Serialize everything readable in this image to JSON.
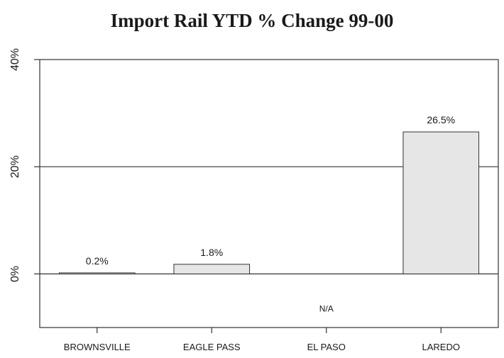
{
  "chart_data": {
    "type": "bar",
    "title": "Import Rail YTD % Change 99-00",
    "xlabel": "",
    "ylabel": "",
    "categories": [
      "BROWNSVILLE",
      "EAGLE PASS",
      "EL PASO",
      "LAREDO"
    ],
    "values": [
      0.2,
      1.8,
      null,
      26.5
    ],
    "data_labels": [
      "0.2%",
      "1.8%",
      "N/A",
      "26.5%"
    ],
    "yticks": [
      0,
      20,
      40
    ],
    "ytick_labels": [
      "0%",
      "20%",
      "40%"
    ],
    "ylim": [
      -10,
      40
    ],
    "gridlines_at": [
      0,
      20
    ],
    "legend": "none",
    "colors": {
      "bar_fill": "#e6e6e6",
      "bar_stroke": "#333333",
      "axis": "#333333"
    }
  }
}
